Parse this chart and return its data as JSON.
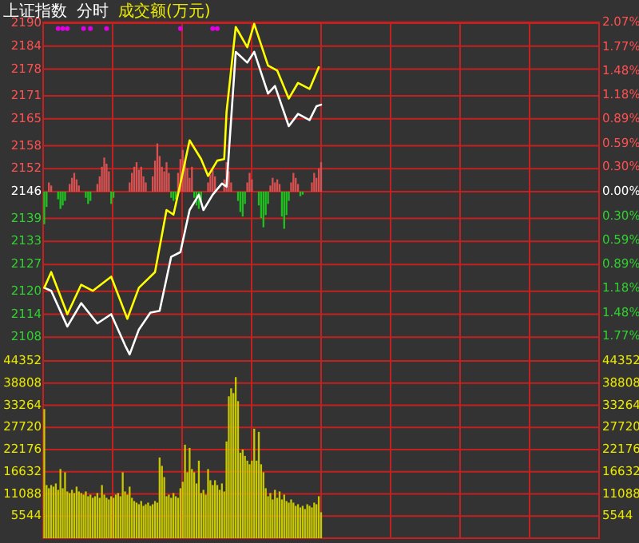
{
  "chart_data": [
    {
      "type": "line",
      "title": "上证指数",
      "subtitle": "分时",
      "annotations": [
        "成交额(万元)"
      ],
      "categories": [
        null,
        null,
        null,
        null,
        null,
        null,
        null,
        null,
        null,
        null,
        null,
        null,
        null,
        null,
        null,
        null,
        null,
        null,
        null,
        null,
        null,
        null,
        null,
        null,
        null,
        null,
        null,
        null,
        null,
        null,
        null,
        null,
        null,
        null,
        null,
        null,
        null,
        null,
        null,
        null,
        null,
        null,
        null,
        null,
        null,
        null,
        null,
        null,
        null,
        null,
        null,
        null,
        null,
        null,
        null,
        null,
        null,
        null,
        null,
        null,
        null,
        null,
        null,
        null,
        null,
        null,
        null,
        null,
        null,
        null,
        null,
        null,
        null,
        null,
        null,
        null,
        null,
        null,
        null,
        null,
        null,
        null,
        null,
        null,
        null,
        null,
        null,
        null,
        null,
        null,
        null,
        null,
        null,
        null,
        null,
        null,
        null,
        null,
        null,
        null,
        null,
        null,
        null,
        null,
        null,
        null,
        null,
        null,
        null,
        null,
        null,
        null,
        null,
        null,
        null,
        null,
        null,
        null,
        null,
        null,
        null,
        null,
        null,
        null,
        null,
        null,
        null,
        null,
        null,
        null,
        null,
        null,
        null,
        null,
        null,
        null,
        null,
        null,
        null,
        null,
        null,
        null,
        null,
        null,
        null,
        null,
        null,
        null,
        null,
        null,
        null,
        null,
        null,
        null,
        null,
        null,
        null,
        null,
        null,
        null,
        null,
        null,
        null,
        null,
        null,
        null,
        null,
        null,
        null,
        null,
        null,
        null,
        null,
        null,
        null,
        null,
        null,
        null,
        null,
        null,
        null,
        null,
        null,
        null,
        null,
        null,
        null,
        null,
        null,
        null,
        null,
        null,
        null,
        null,
        null,
        null,
        null,
        null,
        null,
        null,
        null,
        null,
        null,
        null,
        null,
        null,
        null,
        null,
        null,
        null,
        null,
        null,
        null,
        null,
        null,
        null,
        null,
        null,
        null,
        null,
        null,
        null,
        null,
        null,
        null,
        null,
        null,
        null,
        null,
        null,
        null,
        null,
        null,
        null,
        null,
        null,
        null,
        null,
        null,
        null,
        null
      ],
      "ylim": [
        2101.8,
        2190.2
      ],
      "yticks": [
        2108,
        2114,
        2120,
        2127,
        2133,
        2139,
        2146,
        2152,
        2158,
        2165,
        2171,
        2178,
        2184,
        2190
      ],
      "y2lim": [
        -2.07,
        2.07
      ],
      "y2ticks": [
        {
          "value": -1.77,
          "label": "1.77%"
        },
        {
          "value": -1.48,
          "label": "1.48%"
        },
        {
          "value": -1.18,
          "label": "1.18%"
        },
        {
          "value": -0.89,
          "label": "0.89%"
        },
        {
          "value": -0.59,
          "label": "0.59%"
        },
        {
          "value": -0.3,
          "label": "0.30%"
        },
        {
          "value": 0,
          "label": "0.00%"
        },
        {
          "value": 0.3,
          "label": "0.30%"
        },
        {
          "value": 0.59,
          "label": "0.59%"
        },
        {
          "value": 0.89,
          "label": "0.89%"
        },
        {
          "value": 1.18,
          "label": "1.18%"
        },
        {
          "value": 1.48,
          "label": "1.48%"
        },
        {
          "value": 1.77,
          "label": "1.77%"
        },
        {
          "value": 2.07,
          "label": "2.07%"
        }
      ],
      "grid": true,
      "tick_labels": "y",
      "series": [
        {
          "type": "bar",
          "base": [
            2146,
            2146,
            2146,
            2146,
            null,
            null,
            2146,
            2146,
            2146,
            2146,
            null,
            2146,
            2146,
            2146,
            2146,
            2146,
            null,
            null,
            2146,
            2146,
            2146,
            null,
            null,
            2146,
            2146,
            2146,
            2146,
            2146,
            2146,
            2146,
            2146,
            null,
            null,
            null,
            null,
            null,
            null,
            2146,
            2146,
            2146,
            2146,
            2146,
            2146,
            2146,
            2146,
            null,
            null,
            2146,
            2146,
            2146,
            2146,
            2146,
            2146,
            2146,
            2146,
            2146,
            2146,
            2146,
            2146,
            2146,
            2146,
            2146,
            2146,
            2146,
            2146,
            2146,
            2146,
            2146,
            2146,
            null,
            null,
            2146,
            2146,
            2146,
            2146,
            null,
            null,
            null,
            2146,
            2146,
            2146,
            2146,
            null,
            null,
            2146,
            2146,
            2146,
            2146,
            2146,
            2146,
            2146,
            null,
            null,
            2146,
            2146,
            2146,
            2146,
            2146,
            2146,
            2146,
            2146,
            2146,
            2146,
            2146,
            2146,
            2146,
            2146,
            2146,
            2146,
            2146,
            2146,
            2146,
            2146,
            null,
            null,
            null,
            2146,
            2146,
            2146,
            2146,
            2146,
            null,
            null,
            null,
            null,
            null,
            null,
            null,
            null,
            null,
            null,
            null,
            null,
            null,
            null,
            null,
            null,
            null,
            null,
            null,
            null,
            null,
            null,
            null,
            null,
            null,
            null,
            null,
            null,
            null,
            null,
            null,
            null,
            null,
            null,
            null,
            null,
            null,
            null,
            null,
            null,
            null,
            null,
            null,
            null,
            null,
            null,
            null,
            null,
            null,
            null,
            null,
            null,
            null,
            null,
            null,
            null,
            null,
            null,
            null,
            null,
            null,
            null,
            null,
            null,
            null,
            null,
            null,
            null,
            null,
            null,
            null,
            null,
            null,
            null,
            null,
            null,
            null,
            null,
            null,
            null,
            null,
            null,
            null,
            null,
            null,
            null,
            null,
            null,
            null,
            null,
            null,
            null,
            null,
            null,
            null,
            null,
            null,
            null,
            null,
            null,
            null,
            null,
            null,
            null,
            null,
            null,
            null,
            null,
            null,
            null,
            null,
            null,
            null,
            null,
            null,
            null,
            null,
            null,
            null,
            null
          ],
          "values": [
            -8.5,
            -4.0,
            2.4,
            1.6,
            null,
            null,
            -2.0,
            -4.5,
            -3.6,
            -2.4,
            null,
            2.0,
            3.6,
            4.9,
            3.2,
            1.6,
            null,
            null,
            -1.6,
            -3.2,
            -2.4,
            null,
            null,
            2.0,
            4.0,
            6.5,
            8.9,
            7.3,
            5.3,
            -3.2,
            -1.6,
            null,
            null,
            null,
            null,
            null,
            null,
            2.4,
            4.9,
            6.5,
            7.7,
            5.7,
            6.5,
            4.0,
            2.4,
            null,
            null,
            4.0,
            8.1,
            12.6,
            9.3,
            6.5,
            5.3,
            7.7,
            4.9,
            -1.6,
            -2.4,
            -2.0,
            4.9,
            8.5,
            10.9,
            8.1,
            6.1,
            3.6,
            6.5,
            -1.6,
            -3.6,
            -4.5,
            -2.4,
            null,
            null,
            2.4,
            4.5,
            5.7,
            4.0,
            null,
            null,
            null,
            3.2,
            7.7,
            5.3,
            2.4,
            null,
            null,
            -2.4,
            -5.3,
            -6.5,
            -3.2,
            2.4,
            4.9,
            3.2,
            null,
            null,
            -3.6,
            -6.9,
            -9.3,
            -6.1,
            -3.2,
            1.6,
            3.6,
            2.4,
            3.2,
            2.0,
            -6.5,
            -9.7,
            -6.1,
            -2.4,
            2.4,
            4.9,
            3.6,
            2.0,
            -1.2,
            -0.8,
            null,
            null,
            null,
            2.4,
            4.9,
            3.6,
            6.1,
            7.7,
            null,
            null,
            null,
            null,
            null,
            null,
            null,
            null,
            null,
            null,
            null,
            null,
            null,
            null,
            null,
            null,
            null,
            null,
            null,
            null,
            null,
            null,
            null,
            null,
            null,
            null,
            null,
            null,
            null,
            null,
            null,
            null,
            null,
            null,
            null,
            null,
            null,
            null,
            null,
            null,
            null,
            null,
            null,
            null,
            null,
            null,
            null,
            null,
            null,
            null,
            null,
            null,
            null,
            null,
            null,
            null,
            null,
            null,
            null,
            null,
            null,
            null,
            null,
            null,
            null,
            null,
            null,
            null,
            null,
            null,
            null,
            null,
            null,
            null,
            null,
            null,
            null,
            null,
            null,
            null,
            null,
            null,
            null,
            null,
            null,
            null,
            null,
            null,
            null,
            null,
            null,
            null,
            null,
            null,
            null,
            null,
            null,
            null,
            null,
            null,
            null,
            null,
            null,
            null,
            null,
            null,
            null,
            null,
            null,
            null,
            null,
            null,
            null,
            null,
            null,
            null,
            null,
            null,
            null,
            null
          ],
          "colors": [
            "#20c020",
            "#20c020",
            "#d95050",
            "#d95050",
            null,
            null,
            "#20c020",
            "#20c020",
            "#20c020",
            "#20c020",
            null,
            "#d95050",
            "#d95050",
            "#d95050",
            "#d95050",
            "#d95050",
            null,
            null,
            "#20c020",
            "#20c020",
            "#20c020",
            null,
            null,
            "#d95050",
            "#d95050",
            "#d95050",
            "#d95050",
            "#d95050",
            "#d95050",
            "#20c020",
            "#20c020",
            null,
            null,
            null,
            null,
            null,
            null,
            "#d95050",
            "#d95050",
            "#d95050",
            "#d95050",
            "#d95050",
            "#d95050",
            "#d95050",
            "#d95050",
            null,
            null,
            "#d95050",
            "#d95050",
            "#d95050",
            "#d95050",
            "#d95050",
            "#d95050",
            "#d95050",
            "#d95050",
            "#20c020",
            "#20c020",
            "#20c020",
            "#d95050",
            "#d95050",
            "#d95050",
            "#d95050",
            "#d95050",
            "#d95050",
            "#d95050",
            "#20c020",
            "#20c020",
            "#20c020",
            "#20c020",
            null,
            null,
            "#d95050",
            "#d95050",
            "#d95050",
            "#d95050",
            null,
            null,
            null,
            "#d95050",
            "#d95050",
            "#d95050",
            "#d95050",
            null,
            null,
            "#20c020",
            "#20c020",
            "#20c020",
            "#20c020",
            "#d95050",
            "#d95050",
            "#d95050",
            null,
            null,
            "#20c020",
            "#20c020",
            "#20c020",
            "#20c020",
            "#20c020",
            "#d95050",
            "#d95050",
            "#d95050",
            "#d95050",
            "#d95050",
            "#20c020",
            "#20c020",
            "#20c020",
            "#20c020",
            "#d95050",
            "#d95050",
            "#d95050",
            "#d95050",
            "#20c020",
            "#20c020",
            null,
            null,
            null,
            "#d95050",
            "#d95050",
            "#d95050",
            "#d95050",
            "#d95050",
            null,
            null,
            null,
            null,
            null,
            null,
            null,
            null,
            null,
            null,
            null,
            null,
            null,
            null,
            null,
            null,
            null,
            null,
            null,
            null,
            null,
            null,
            null,
            null,
            null,
            null,
            null,
            null,
            null,
            null,
            null,
            null,
            null,
            null,
            null,
            null,
            null,
            null,
            null,
            null,
            null,
            null,
            null,
            null,
            null,
            null,
            null,
            null,
            null,
            null,
            null,
            null,
            null,
            null,
            null,
            null,
            null,
            null,
            null,
            null,
            null,
            null,
            null,
            null,
            null,
            null,
            null,
            null,
            null,
            null,
            null,
            null,
            null,
            null,
            null,
            null,
            null,
            null,
            null,
            null,
            null,
            null,
            null,
            null,
            null,
            null,
            null,
            null,
            null,
            null,
            null,
            null,
            null,
            null,
            null,
            null,
            null,
            null,
            null,
            null,
            null,
            null,
            null,
            null,
            null,
            null,
            null,
            null,
            null,
            null,
            null,
            null,
            null,
            null,
            null,
            null,
            null,
            null,
            null,
            null
          ]
        },
        {
          "type": "line",
          "color": "#ffffff",
          "values": [
            2120.9,
            null,
            null,
            2120.1,
            null,
            null,
            null,
            null,
            null,
            null,
            2110.8,
            null,
            null,
            null,
            null,
            null,
            2116.9,
            null,
            null,
            null,
            null,
            null,
            null,
            2111.6,
            null,
            null,
            null,
            null,
            null,
            2114.0,
            null,
            null,
            null,
            null,
            null,
            2105.9,
            null,
            2103.5,
            null,
            null,
            null,
            2110.0,
            null,
            null,
            null,
            null,
            2114.4,
            null,
            null,
            null,
            2114.9,
            null,
            null,
            null,
            null,
            2129.0,
            null,
            null,
            null,
            2130.2,
            null,
            null,
            null,
            2141.2,
            null,
            null,
            null,
            2145.2,
            null,
            2141.2,
            null,
            null,
            null,
            2145.2,
            null,
            null,
            null,
            2148.1,
            null,
            2147.3,
            null,
            null,
            null,
            2182.5,
            null,
            null,
            null,
            null,
            2179.7,
            null,
            null,
            2182.5,
            null,
            null,
            null,
            null,
            null,
            2171.6,
            null,
            null,
            2173.6,
            null,
            null,
            null,
            null,
            null,
            2163.1,
            null,
            null,
            null,
            2166.3,
            null,
            null,
            null,
            null,
            2164.7,
            null,
            null,
            2168.3,
            null,
            2168.7,
            null,
            null,
            null,
            null,
            null,
            null,
            null,
            null,
            null,
            null,
            null,
            null,
            null,
            null,
            null,
            null,
            null,
            null,
            null,
            null,
            null,
            null,
            null,
            null,
            null,
            null,
            null,
            null,
            null,
            null,
            null,
            null,
            null,
            null,
            null,
            null,
            null,
            null,
            null,
            null,
            null,
            null,
            null,
            null,
            null,
            null,
            null,
            null,
            null,
            null,
            null,
            null,
            null,
            null,
            null,
            null,
            null,
            null,
            null,
            null,
            null,
            null,
            null,
            null,
            null,
            null,
            null,
            null,
            null,
            null,
            null,
            null,
            null,
            null,
            null,
            null,
            null,
            null,
            null,
            null,
            null,
            null,
            null,
            null,
            null,
            null,
            null,
            null,
            null,
            null,
            null,
            null,
            null,
            null,
            null,
            null,
            null,
            null,
            null,
            null,
            null,
            null,
            null,
            null,
            null,
            null,
            null,
            null,
            null,
            null,
            null,
            null,
            null,
            null,
            null,
            null,
            null,
            null,
            null,
            null
          ]
        },
        {
          "type": "line",
          "color": "#ffff00",
          "values": [
            2120.9,
            null,
            null,
            2125.0,
            null,
            null,
            null,
            null,
            null,
            null,
            2114.0,
            null,
            null,
            null,
            null,
            null,
            2121.7,
            null,
            null,
            null,
            null,
            2120.1,
            null,
            null,
            null,
            null,
            null,
            null,
            null,
            2123.8,
            null,
            null,
            null,
            null,
            null,
            null,
            2112.8,
            null,
            null,
            null,
            null,
            2120.9,
            null,
            null,
            null,
            null,
            null,
            null,
            2125.0,
            null,
            null,
            null,
            null,
            2141.2,
            null,
            null,
            2140.0,
            null,
            null,
            2148.1,
            null,
            null,
            null,
            2159.4,
            null,
            null,
            null,
            null,
            2154.5,
            null,
            null,
            2150.1,
            null,
            null,
            null,
            2154.1,
            null,
            null,
            2154.5,
            2166.7,
            null,
            null,
            null,
            2189.0,
            null,
            null,
            null,
            null,
            2183.7,
            null,
            null,
            2189.8,
            null,
            null,
            null,
            null,
            null,
            2178.9,
            null,
            null,
            null,
            2177.6,
            null,
            null,
            null,
            null,
            2170.3,
            null,
            null,
            null,
            2174.4,
            null,
            null,
            null,
            null,
            2172.8,
            null,
            null,
            null,
            2178.5,
            null,
            null,
            null,
            null,
            null,
            null,
            null,
            null,
            null,
            null,
            null,
            null,
            null,
            null,
            null,
            null,
            null,
            null,
            null,
            null,
            null,
            null,
            null,
            null,
            null,
            null,
            null,
            null,
            null,
            null,
            null,
            null,
            null,
            null,
            null,
            null,
            null,
            null,
            null,
            null,
            null,
            null,
            null,
            null,
            null,
            null,
            null,
            null,
            null,
            null,
            null,
            null,
            null,
            null,
            null,
            null,
            null,
            null,
            null,
            null,
            null,
            null,
            null,
            null,
            null,
            null,
            null,
            null,
            null,
            null,
            null,
            null,
            null,
            null,
            null,
            null,
            null,
            null,
            null,
            null,
            null,
            null,
            null,
            null,
            null,
            null,
            null,
            null,
            null,
            null,
            null,
            null,
            null,
            null,
            null,
            null,
            null,
            null,
            null,
            null,
            null,
            null,
            null,
            null,
            null,
            null,
            null,
            null,
            null,
            null,
            null,
            null,
            null,
            null,
            null,
            null,
            null,
            null,
            null,
            null,
            null
          ]
        },
        {
          "type": "scatter",
          "color": "#e000e0",
          "marker": "circle",
          "values": [
            null,
            null,
            null,
            null,
            null,
            null,
            2188.6,
            null,
            2188.6,
            null,
            2188.6,
            null,
            null,
            null,
            null,
            null,
            null,
            2188.6,
            null,
            null,
            2188.6,
            null,
            null,
            null,
            null,
            null,
            null,
            2188.6,
            null,
            null,
            null,
            null,
            null,
            null,
            null,
            null,
            null,
            null,
            null,
            null,
            null,
            null,
            null,
            null,
            null,
            null,
            null,
            null,
            null,
            null,
            null,
            null,
            null,
            null,
            null,
            null,
            null,
            null,
            null,
            2188.6,
            null,
            null,
            null,
            null,
            null,
            null,
            null,
            null,
            null,
            null,
            null,
            null,
            null,
            2188.6,
            null,
            2188.6,
            null,
            null,
            null,
            null,
            null,
            null,
            null,
            null,
            null,
            null,
            null,
            null,
            null,
            null,
            null,
            null,
            null,
            null,
            null,
            null,
            null,
            null,
            null,
            null,
            null,
            null,
            null,
            null,
            null,
            null,
            null,
            null,
            null,
            null,
            null,
            null,
            null,
            null,
            null,
            null,
            null,
            null,
            null,
            null,
            null,
            null,
            null,
            null,
            null,
            null,
            null,
            null,
            null,
            null,
            null,
            null,
            null,
            null,
            null,
            null,
            null,
            null,
            null,
            null,
            null,
            null,
            null,
            null,
            null,
            null,
            null,
            null,
            null,
            null,
            null,
            null,
            null,
            null,
            null,
            null,
            null,
            null,
            null,
            null,
            null,
            null,
            null,
            null,
            null,
            null,
            null,
            null,
            null,
            null,
            null,
            null,
            null,
            null,
            null,
            null,
            null,
            null,
            null,
            null,
            null,
            null,
            null,
            null,
            null,
            null,
            null,
            null,
            null,
            null,
            null,
            null,
            null,
            null,
            null,
            null,
            null,
            null,
            null,
            null,
            null,
            null,
            null,
            null,
            null,
            null,
            null,
            null,
            null,
            null,
            null,
            null,
            null,
            null,
            null,
            null,
            null,
            null,
            null,
            null,
            null,
            null,
            null,
            null,
            null,
            null,
            null,
            null,
            null,
            null,
            null,
            null,
            null,
            null,
            null,
            null,
            null,
            null,
            null,
            null,
            null
          ]
        }
      ]
    },
    {
      "type": "bar",
      "color": "#c8c800",
      "categories": [
        null,
        null,
        null,
        null,
        null,
        null,
        null,
        null,
        null,
        null,
        null,
        null,
        null,
        null,
        null,
        null,
        null,
        null,
        null,
        null,
        null,
        null,
        null,
        null,
        null,
        null,
        null,
        null,
        null,
        null,
        null,
        null,
        null,
        null,
        null,
        null,
        null,
        null,
        null,
        null,
        null,
        null,
        null,
        null,
        null,
        null,
        null,
        null,
        null,
        null,
        null,
        null,
        null,
        null,
        null,
        null,
        null,
        null,
        null,
        null,
        null,
        null,
        null,
        null,
        null,
        null,
        null,
        null,
        null,
        null,
        null,
        null,
        null,
        null,
        null,
        null,
        null,
        null,
        null,
        null,
        null,
        null,
        null,
        null,
        null,
        null,
        null,
        null,
        null,
        null,
        null,
        null,
        null,
        null,
        null,
        null,
        null,
        null,
        null,
        null,
        null,
        null,
        null,
        null,
        null,
        null,
        null,
        null,
        null,
        null,
        null,
        null,
        null,
        null,
        null,
        null,
        null,
        null,
        null,
        null,
        null,
        null,
        null,
        null,
        null,
        null,
        null,
        null,
        null,
        null,
        null,
        null,
        null,
        null,
        null,
        null,
        null,
        null,
        null,
        null,
        null,
        null,
        null,
        null,
        null,
        null,
        null,
        null,
        null,
        null,
        null,
        null,
        null,
        null,
        null,
        null,
        null,
        null,
        null,
        null,
        null,
        null,
        null,
        null,
        null,
        null,
        null,
        null,
        null,
        null,
        null,
        null,
        null,
        null,
        null,
        null,
        null,
        null,
        null,
        null,
        null,
        null,
        null,
        null,
        null,
        null,
        null,
        null,
        null,
        null,
        null,
        null,
        null,
        null,
        null,
        null,
        null,
        null,
        null,
        null,
        null,
        null,
        null,
        null,
        null,
        null,
        null,
        null,
        null,
        null,
        null,
        null,
        null,
        null,
        null,
        null,
        null,
        null,
        null,
        null,
        null,
        null,
        null,
        null,
        null,
        null,
        null,
        null,
        null,
        null,
        null,
        null,
        null,
        null,
        null,
        null,
        null,
        null,
        null,
        null,
        null
      ],
      "ylim": [
        0,
        44352
      ],
      "yticks": [
        5544,
        11088,
        16632,
        22176,
        27720,
        33264,
        38808,
        44352
      ],
      "y2lim": [
        0,
        44352
      ],
      "y2ticks": [
        5544,
        11088,
        16632,
        22176,
        27720,
        33264,
        38808,
        44352
      ],
      "grid": true,
      "tick_labels": "y",
      "values": [
        32300,
        13300,
        12500,
        13300,
        12900,
        13700,
        12100,
        17300,
        12500,
        16500,
        11700,
        11300,
        12100,
        11300,
        12900,
        11700,
        11300,
        10900,
        11700,
        10500,
        10900,
        10100,
        10500,
        11300,
        10100,
        13300,
        10900,
        10100,
        9700,
        10500,
        10100,
        10900,
        11300,
        10500,
        16500,
        11700,
        10900,
        12900,
        10100,
        9300,
        8900,
        8500,
        9300,
        8100,
        8500,
        8900,
        8100,
        8500,
        9300,
        8900,
        20200,
        18100,
        15300,
        10500,
        10900,
        10100,
        11300,
        10500,
        10100,
        12500,
        14100,
        23400,
        16500,
        22600,
        17300,
        16500,
        13700,
        19400,
        11300,
        12100,
        10900,
        17300,
        14500,
        13300,
        14500,
        13300,
        12100,
        13700,
        11700,
        24200,
        35500,
        37500,
        36300,
        40300,
        34300,
        21400,
        22200,
        20600,
        19400,
        18500,
        19400,
        27400,
        19400,
        26600,
        18500,
        16500,
        12500,
        10500,
        11300,
        9700,
        12100,
        10100,
        11700,
        9700,
        10900,
        9300,
        8900,
        9700,
        8900,
        8100,
        8500,
        7700,
        8100,
        7300,
        8500,
        8100,
        7700,
        8900,
        8500,
        10500,
        6500,
        null,
        null,
        null,
        null,
        null,
        null,
        null,
        null,
        null,
        null,
        null,
        null,
        null,
        null,
        null,
        null,
        null,
        null,
        null,
        null,
        null,
        null,
        null,
        null,
        null,
        null,
        null,
        null,
        null,
        null,
        null,
        null,
        null,
        null,
        null,
        null,
        null,
        null,
        null,
        null,
        null,
        null,
        null,
        null,
        null,
        null,
        null,
        null,
        null,
        null,
        null,
        null,
        null,
        null,
        null,
        null,
        null,
        null,
        null,
        null,
        null,
        null,
        null,
        null,
        null,
        null,
        null,
        null,
        null,
        null,
        null,
        null,
        null,
        null,
        null,
        null,
        null,
        null,
        null,
        null,
        null,
        null,
        null,
        null,
        null,
        null,
        null,
        null,
        null,
        null,
        null,
        null,
        null,
        null,
        null,
        null,
        null,
        null,
        null,
        null,
        null,
        null,
        null,
        null,
        null,
        null,
        null,
        null,
        null,
        null,
        null,
        null,
        null,
        null,
        null,
        null,
        null,
        null,
        null,
        null
      ]
    }
  ]
}
